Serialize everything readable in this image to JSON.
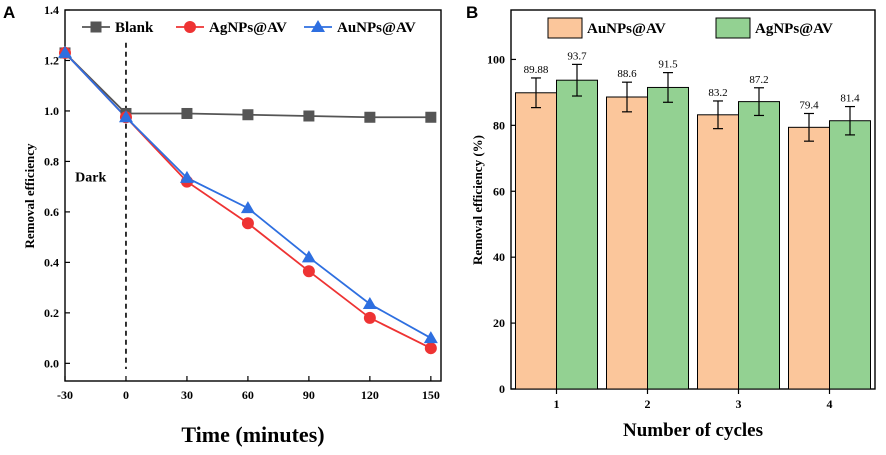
{
  "chart_data": [
    {
      "panel": "A",
      "type": "line",
      "title": "",
      "xlabel": "Time (minutes)",
      "ylabel": "Removal efficiency",
      "x": [
        -30,
        0,
        30,
        60,
        90,
        120,
        150
      ],
      "xticks": [
        -30,
        0,
        30,
        60,
        90,
        120,
        150
      ],
      "yticks": [
        "0.0",
        "0.2",
        "0.4",
        "0.6",
        "0.8",
        "1.0",
        "1.2",
        "1.4"
      ],
      "xlim": [
        -30,
        155
      ],
      "ylim": [
        -0.07,
        1.4
      ],
      "series": [
        {
          "name": "Blank",
          "color": "#555555",
          "marker": "square",
          "values": [
            1.23,
            0.99,
            0.99,
            0.985,
            0.98,
            0.975,
            0.975
          ]
        },
        {
          "name": "AgNPs@AV",
          "color": "#ee3333",
          "marker": "circle",
          "values": [
            1.23,
            0.975,
            0.72,
            0.555,
            0.365,
            0.18,
            0.06
          ]
        },
        {
          "name": "AuNPs@AV",
          "color": "#2e6fe0",
          "marker": "triangle",
          "values": [
            1.23,
            0.975,
            0.735,
            0.615,
            0.42,
            0.235,
            0.1
          ]
        }
      ],
      "annotations": [
        {
          "text": "Dark",
          "x": -25,
          "y": 0.72
        }
      ],
      "dark_line_x": 0
    },
    {
      "panel": "B",
      "type": "bar",
      "title": "",
      "xlabel": "Number of cycles",
      "ylabel": "Removal efficiency (%)",
      "categories": [
        "1",
        "2",
        "3",
        "4"
      ],
      "yticks": [
        "0",
        "20",
        "40",
        "60",
        "80",
        "100"
      ],
      "ylim": [
        0,
        115
      ],
      "series": [
        {
          "name": "AuNPs@AV",
          "color": "#fbc69b",
          "values": [
            89.88,
            88.6,
            83.2,
            79.4
          ],
          "labels": [
            "89.88",
            "88.6",
            "83.2",
            "79.4"
          ],
          "errors": [
            4.5,
            4.5,
            4.2,
            4.2
          ]
        },
        {
          "name": "AgNPs@AV",
          "color": "#93d192",
          "values": [
            93.7,
            91.5,
            87.2,
            81.4
          ],
          "labels": [
            "93.7",
            "91.5",
            "87.2",
            "81.4"
          ],
          "errors": [
            4.8,
            4.5,
            4.2,
            4.3
          ]
        }
      ]
    }
  ]
}
